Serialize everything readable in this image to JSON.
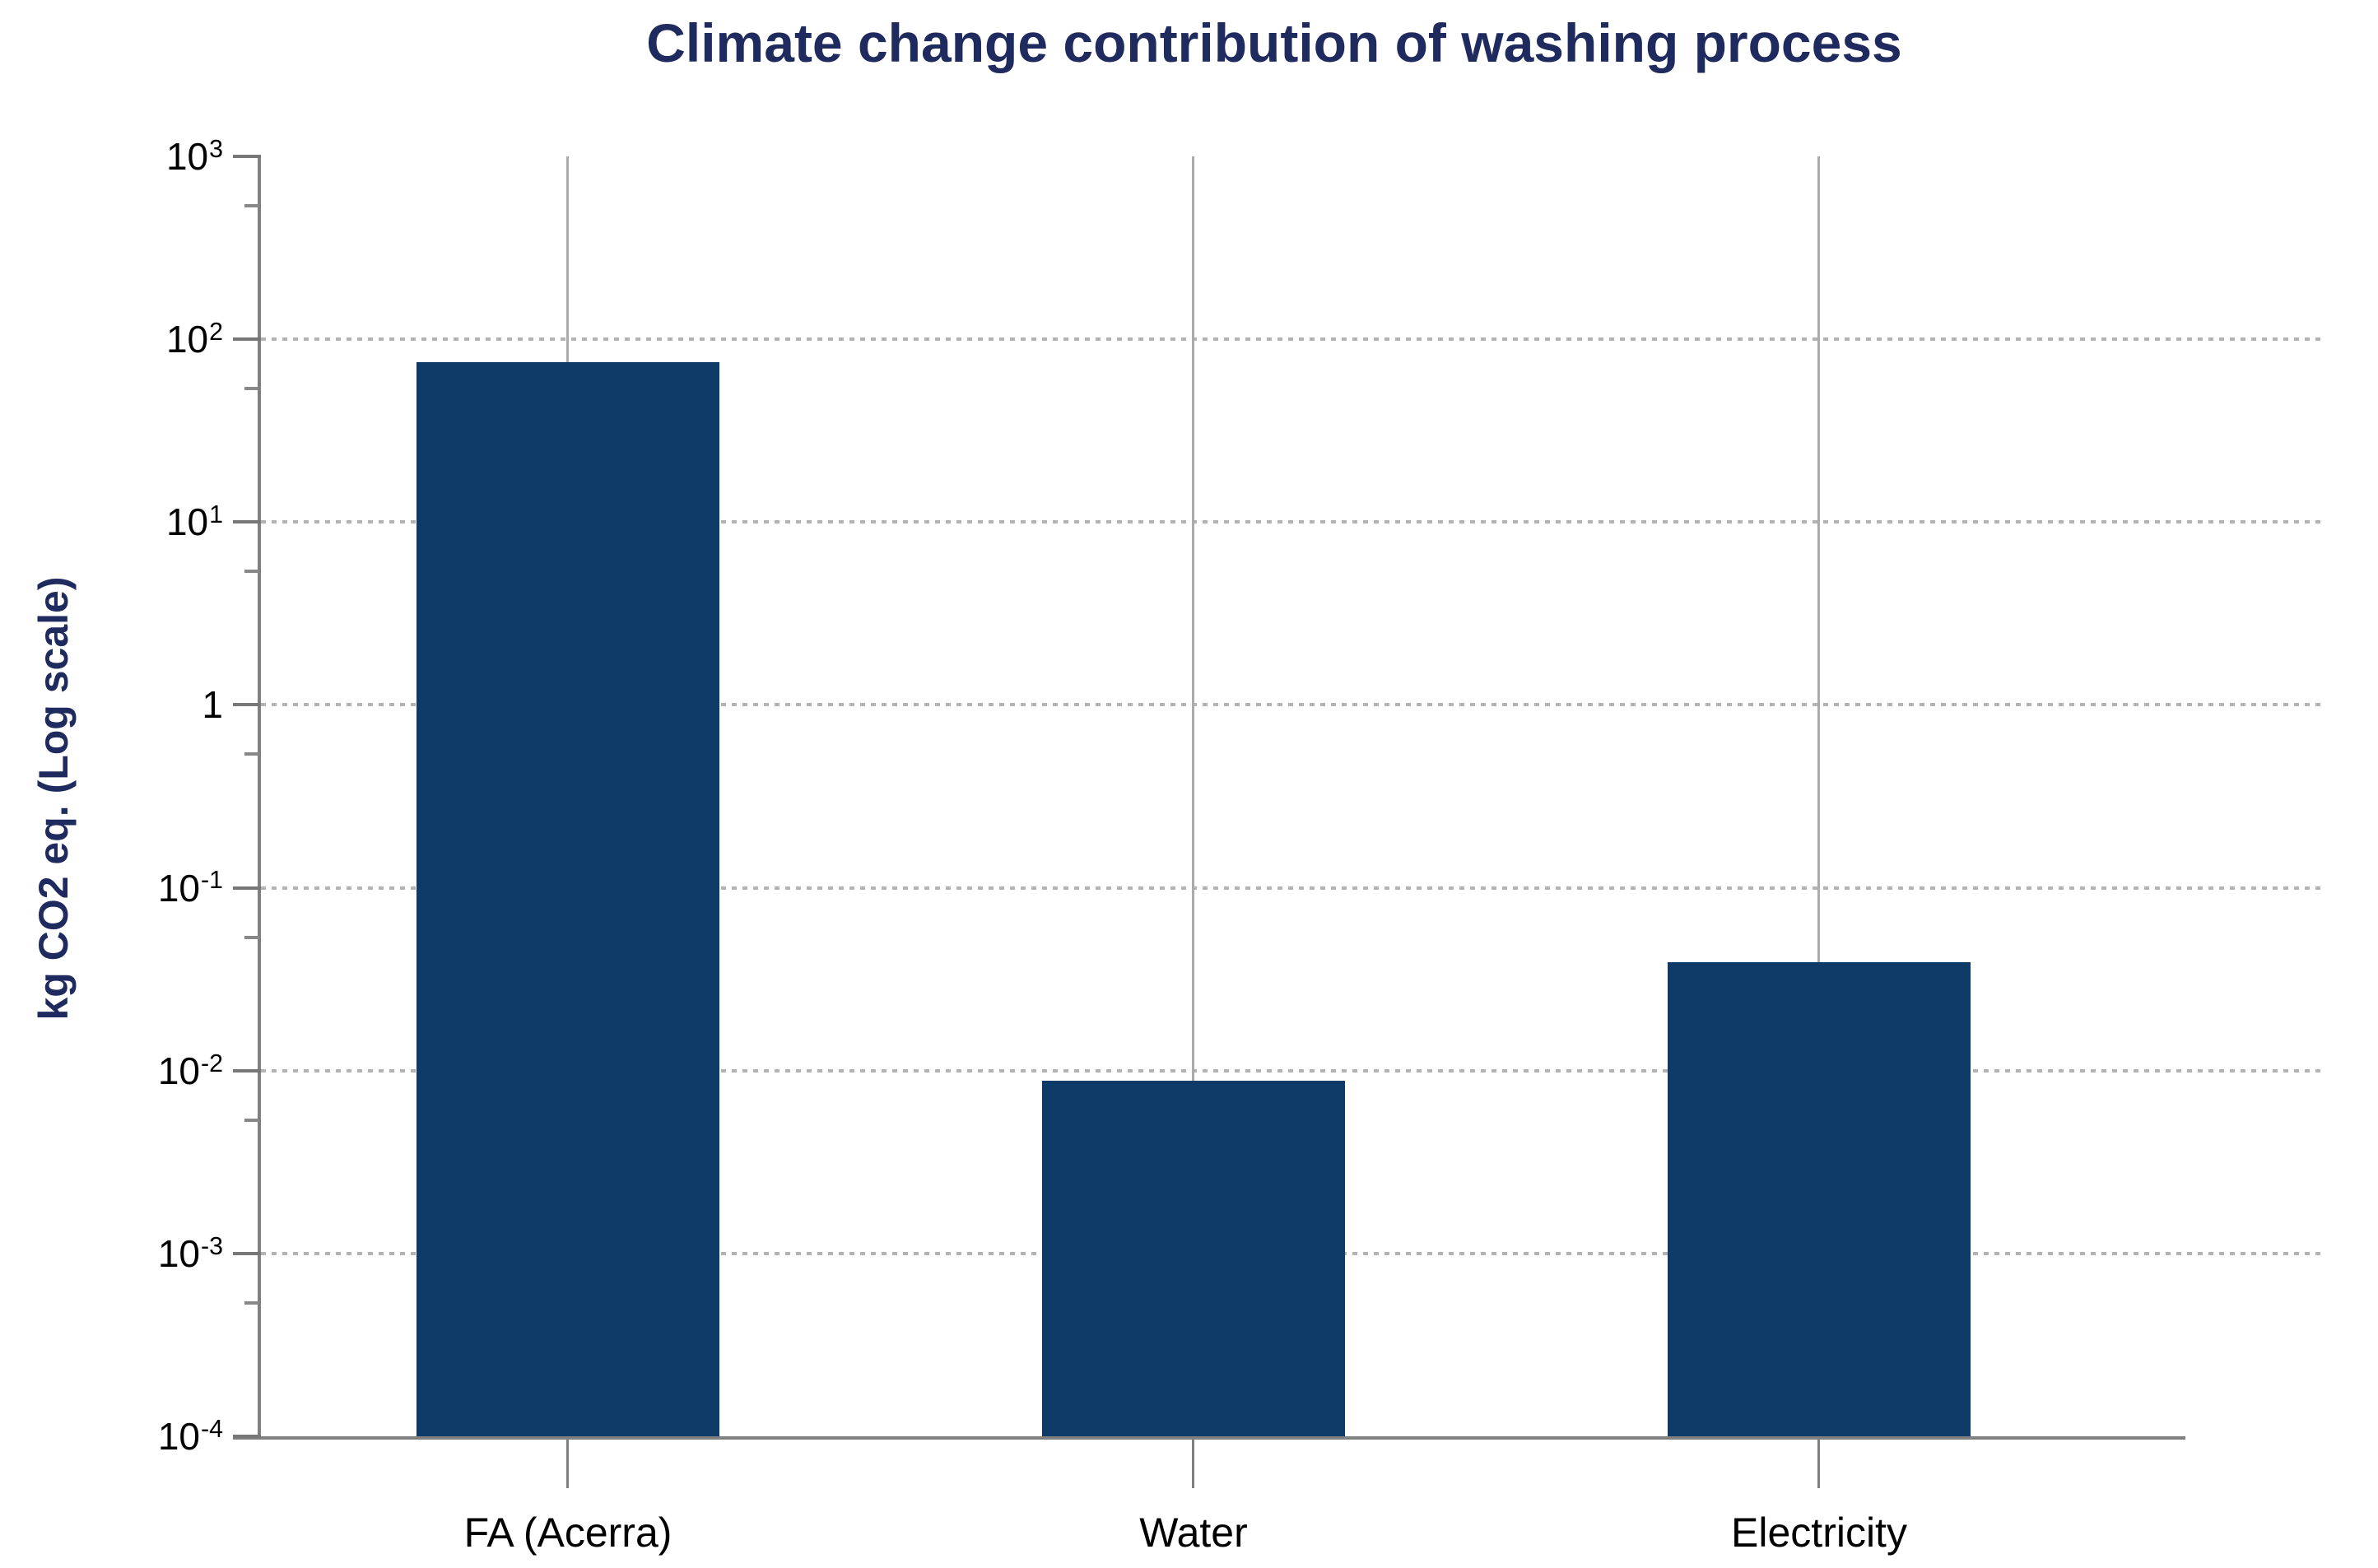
{
  "title": {
    "text": "Climate change contribution of washing process",
    "color": "#1F2A5E"
  },
  "chart_data": {
    "type": "bar",
    "title": "Climate change contribution of washing process",
    "categories": [
      "FA (Acerra)",
      "Water",
      "Electricity"
    ],
    "values": [
      75,
      0.0088,
      0.039
    ],
    "series": [
      {
        "name": "kg CO2 eq.",
        "values": [
          75,
          0.0088,
          0.039
        ]
      }
    ],
    "xlabel": "",
    "ylabel": "kg CO2 eq. (Log scale)",
    "y_scale": "log10",
    "ylim": [
      0.0001,
      1000
    ],
    "y_ticks": [
      {
        "label": "10",
        "exp": "3",
        "value": 1000
      },
      {
        "label": "10",
        "exp": "2",
        "value": 100
      },
      {
        "label": "10",
        "exp": "1",
        "value": 10
      },
      {
        "label": "1",
        "exp": "",
        "value": 1
      },
      {
        "label": "10",
        "exp": "-1",
        "value": 0.1
      },
      {
        "label": "10",
        "exp": "-2",
        "value": 0.01
      },
      {
        "label": "10",
        "exp": "-3",
        "value": 0.001
      },
      {
        "label": "10",
        "exp": "-4",
        "value": 0.0001
      }
    ],
    "grid": "horizontal dotted lines at each decade (10^2 to 10^-3)",
    "legend": "none",
    "colors": {
      "bar": "#0D3A66",
      "title_text": "#1F2A5E",
      "axis_line": "#808080",
      "major_tick": "#777777",
      "minor_tick": "#888888",
      "grid_dots": "#B3B3B3",
      "category_line": "#ABABAB",
      "tick_label_text": "#000000"
    }
  }
}
